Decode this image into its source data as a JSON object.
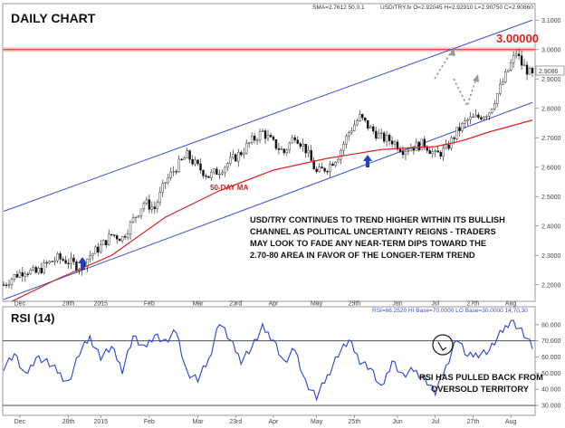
{
  "chart_data": [
    {
      "type": "candlestick",
      "title": "DAILY CHART",
      "symbol_header": "USD/TRY.fx O=2.92045 H=2.92910 L=2.90750 C=2.90860",
      "sma_header": "SMA=2.7612  50,0,1",
      "current_price": "2.9086",
      "ylim": [
        2.15,
        3.15
      ],
      "y_ticks": [
        "2.2000",
        "2.3000",
        "2.4000",
        "2.5000",
        "2.6000",
        "2.7000",
        "2.8000",
        "2.9000",
        "3.0000",
        "3.1000"
      ],
      "x_ticks": [
        "Dec",
        "29th",
        "2015",
        "Feb",
        "Mar",
        "23rd",
        "Apr",
        "May",
        "25th",
        "Jun",
        "Jul",
        "27th",
        "Aug"
      ],
      "close_path": [
        [
          0,
          2.2
        ],
        [
          4,
          2.23
        ],
        [
          8,
          2.25
        ],
        [
          12,
          2.24
        ],
        [
          16,
          2.27
        ],
        [
          20,
          2.29
        ],
        [
          24,
          2.28
        ],
        [
          28,
          2.26
        ],
        [
          32,
          2.3
        ],
        [
          36,
          2.33
        ],
        [
          40,
          2.37
        ],
        [
          44,
          2.36
        ],
        [
          48,
          2.42
        ],
        [
          52,
          2.48
        ],
        [
          56,
          2.46
        ],
        [
          60,
          2.55
        ],
        [
          64,
          2.6
        ],
        [
          68,
          2.64
        ],
        [
          72,
          2.6
        ],
        [
          76,
          2.57
        ],
        [
          80,
          2.59
        ],
        [
          84,
          2.62
        ],
        [
          88,
          2.65
        ],
        [
          92,
          2.69
        ],
        [
          96,
          2.72
        ],
        [
          100,
          2.68
        ],
        [
          104,
          2.65
        ],
        [
          108,
          2.71
        ],
        [
          112,
          2.66
        ],
        [
          116,
          2.58
        ],
        [
          120,
          2.6
        ],
        [
          124,
          2.64
        ],
        [
          128,
          2.72
        ],
        [
          132,
          2.77
        ],
        [
          136,
          2.73
        ],
        [
          140,
          2.7
        ],
        [
          144,
          2.69
        ],
        [
          148,
          2.66
        ],
        [
          152,
          2.67
        ],
        [
          156,
          2.68
        ],
        [
          160,
          2.64
        ],
        [
          164,
          2.66
        ],
        [
          168,
          2.72
        ],
        [
          172,
          2.76
        ],
        [
          176,
          2.77
        ],
        [
          180,
          2.79
        ],
        [
          184,
          2.87
        ],
        [
          188,
          2.95
        ],
        [
          190,
          2.99
        ],
        [
          192,
          2.95
        ],
        [
          196,
          2.91
        ]
      ],
      "ma_path": [
        [
          0,
          2.13
        ],
        [
          20,
          2.22
        ],
        [
          40,
          2.3
        ],
        [
          60,
          2.43
        ],
        [
          80,
          2.52
        ],
        [
          100,
          2.59
        ],
        [
          120,
          2.63
        ],
        [
          140,
          2.66
        ],
        [
          160,
          2.67
        ],
        [
          170,
          2.69
        ],
        [
          180,
          2.72
        ],
        [
          196,
          2.76
        ]
      ],
      "channel_upper": [
        [
          0,
          2.45
        ],
        [
          196,
          3.1
        ]
      ],
      "channel_lower": [
        [
          0,
          2.15
        ],
        [
          196,
          2.82
        ]
      ],
      "horizontal_level": {
        "value": 3.0,
        "label": "3.00000",
        "color": "#e0201c"
      },
      "ma_label": "50-DAY MA",
      "ma_color": "#e02020",
      "channel_color": "#3a4fd6",
      "annotation": [
        "USD/TRY CONTINUES TO TREND HIGHER WITHIN ITS BULLISH",
        "CHANNEL  AS POLITICAL UNCERTAINTY REIGNS - TRADERS",
        "MAY LOOK TO FADE ANY NEAR-TERM DIPS TOWARD THE",
        "2.70-80 AREA IN FAVOR OF THE LONGER-TERM TREND"
      ]
    },
    {
      "type": "line",
      "title": "RSI (14)",
      "header": "RSI=66.2520  HI Base=70.0000  LO Base=30.0000    14,70,30",
      "ylim": [
        25,
        90
      ],
      "y_ticks": [
        "30.000",
        "40.000",
        "50.000",
        "60.000",
        "70.000",
        "80.000"
      ],
      "x_ticks": [
        "Dec",
        "29th",
        "2015",
        "Feb",
        "Mar",
        "23rd",
        "Apr",
        "May",
        "25th",
        "Jun",
        "Jul",
        "27th",
        "Aug"
      ],
      "hi_base": 70,
      "lo_base": 30,
      "series": [
        {
          "values": [
            [
              0,
              54
            ],
            [
              4,
              62
            ],
            [
              8,
              48
            ],
            [
              12,
              60
            ],
            [
              16,
              57
            ],
            [
              20,
              51
            ],
            [
              24,
              44
            ],
            [
              28,
              62
            ],
            [
              32,
              72
            ],
            [
              36,
              60
            ],
            [
              40,
              66
            ],
            [
              44,
              52
            ],
            [
              48,
              73
            ],
            [
              52,
              65
            ],
            [
              56,
              74
            ],
            [
              60,
              69
            ],
            [
              64,
              76
            ],
            [
              68,
              50
            ],
            [
              72,
              46
            ],
            [
              76,
              58
            ],
            [
              80,
              82
            ],
            [
              84,
              70
            ],
            [
              88,
              58
            ],
            [
              92,
              66
            ],
            [
              96,
              78
            ],
            [
              100,
              71
            ],
            [
              104,
              56
            ],
            [
              108,
              65
            ],
            [
              112,
              44
            ],
            [
              116,
              35
            ],
            [
              120,
              48
            ],
            [
              124,
              62
            ],
            [
              128,
              70
            ],
            [
              132,
              58
            ],
            [
              136,
              53
            ],
            [
              140,
              40
            ],
            [
              144,
              58
            ],
            [
              148,
              48
            ],
            [
              152,
              52
            ],
            [
              156,
              47
            ],
            [
              160,
              38
            ],
            [
              164,
              54
            ],
            [
              168,
              72
            ],
            [
              172,
              60
            ],
            [
              176,
              62
            ],
            [
              180,
              64
            ],
            [
              184,
              74
            ],
            [
              188,
              83
            ],
            [
              192,
              76
            ],
            [
              196,
              66
            ]
          ]
        }
      ],
      "annotation": [
        "RSI HAS PULLED BACK FROM",
        "OVERSOLD TERRITORY"
      ]
    }
  ]
}
